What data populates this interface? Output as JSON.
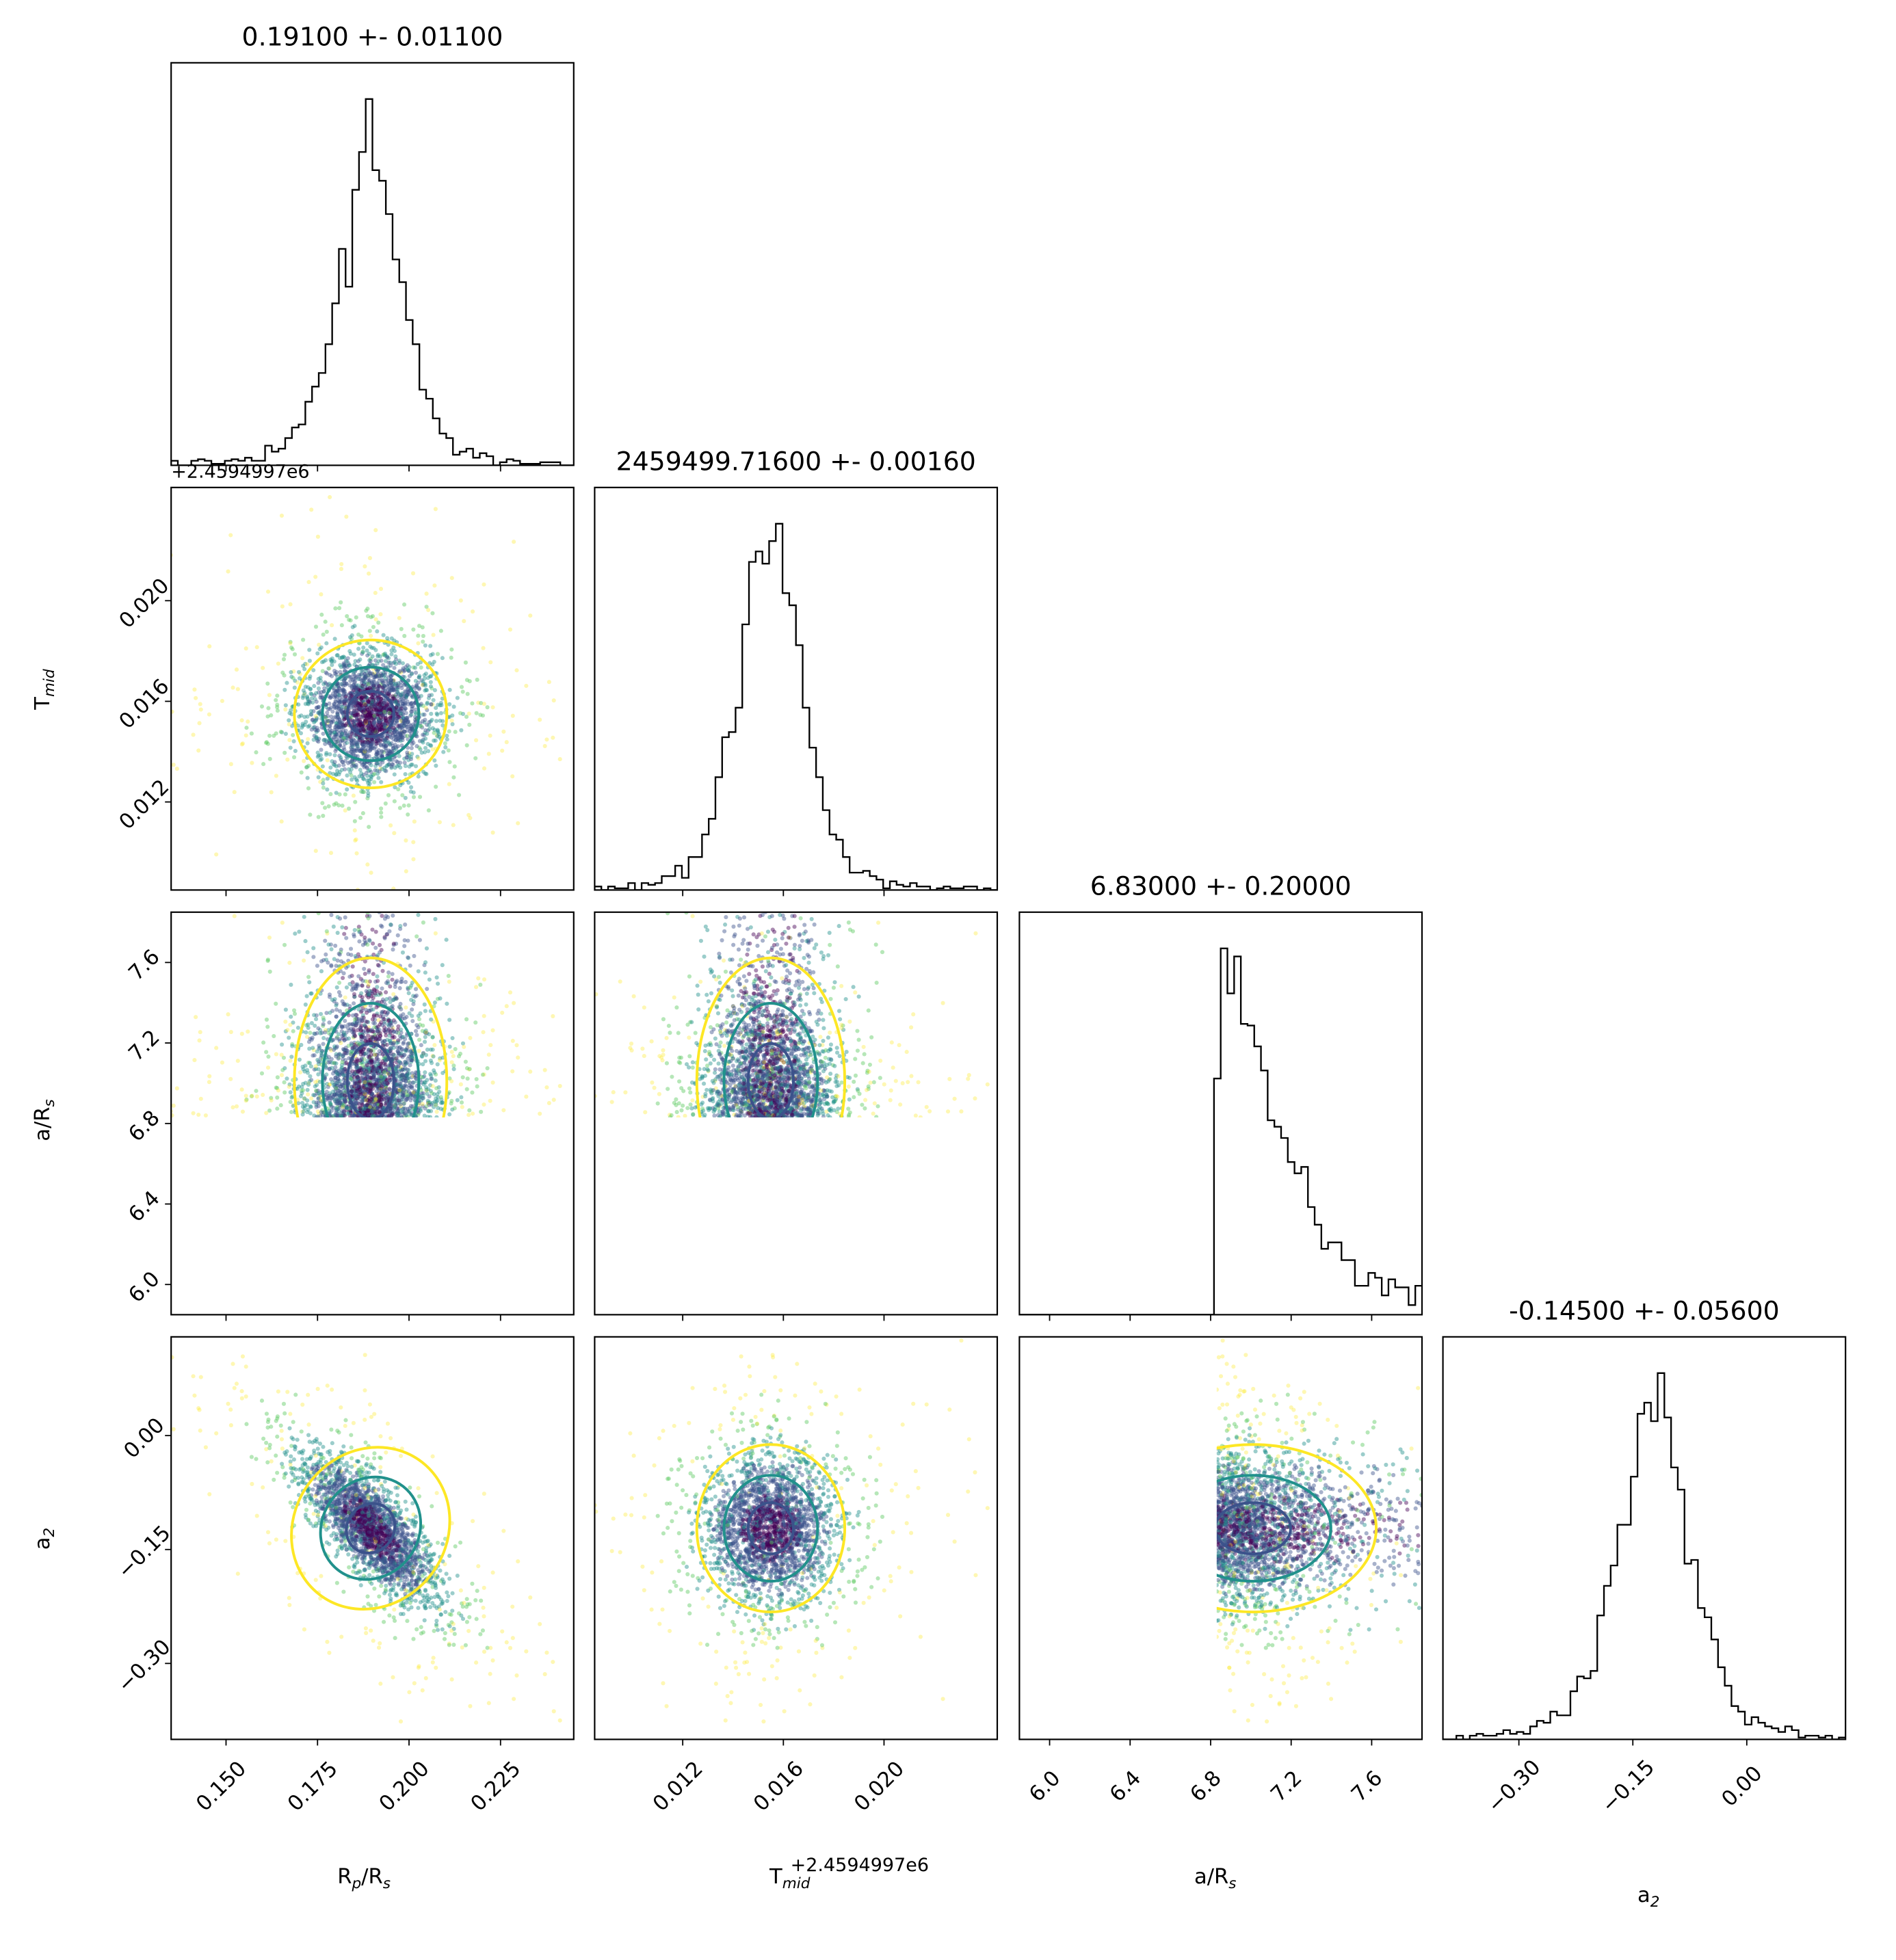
{
  "chart_data": {
    "type": "corner",
    "titles": [
      "0.19100 +- 0.01100",
      "2459499.71600 +- 0.00160",
      "6.83000 +- 0.20000",
      "-0.14500 +- 0.05600"
    ],
    "params": [
      {
        "label": "R_p/R_s",
        "range": [
          0.135,
          0.245
        ],
        "ticks": [
          0.15,
          0.175,
          0.2,
          0.225
        ],
        "tick_labels": [
          "0.150",
          "0.175",
          "0.200",
          "0.225"
        ],
        "mean": 0.1895,
        "sigma": 0.0085,
        "offset_text": "+2.4594997e6"
      },
      {
        "label": "T_mid",
        "range": [
          0.0085,
          0.0245
        ],
        "ticks": [
          0.012,
          0.016,
          0.02
        ],
        "tick_labels": [
          "0.012",
          "0.016",
          "0.020"
        ],
        "mean": 0.0155,
        "sigma": 0.0012,
        "offset_text": "+2.4594997e6"
      },
      {
        "label": "a/R_s",
        "range": [
          5.85,
          7.85
        ],
        "ticks": [
          6.0,
          6.4,
          6.8,
          7.2,
          7.6
        ],
        "tick_labels": [
          "6.0",
          "6.4",
          "6.8",
          "7.2",
          "7.6"
        ],
        "lower_bound": 6.83
      },
      {
        "label": "a_2",
        "range": [
          -0.4,
          0.13
        ],
        "ticks": [
          -0.3,
          -0.15,
          0.0
        ],
        "tick_labels": [
          "−0.30",
          "−0.15",
          "0.00"
        ],
        "mean": -0.122,
        "sigma": 0.045
      }
    ],
    "axis_labels": {
      "x": [
        "R",
        "p",
        "/R",
        "s",
        "T",
        "mid",
        "a/R",
        "s",
        "a",
        "2"
      ],
      "y": [
        "T",
        "mid",
        "a/R",
        "s",
        "a",
        "2"
      ]
    },
    "correlation_Rp_a2": -0.75,
    "contour_colors": [
      "#fde725",
      "#21918c",
      "#3b528b"
    ],
    "scatter_colormap": [
      "#440154",
      "#3b528b",
      "#21918c",
      "#5ec962",
      "#fde725"
    ],
    "grid": false,
    "legend": "none"
  }
}
